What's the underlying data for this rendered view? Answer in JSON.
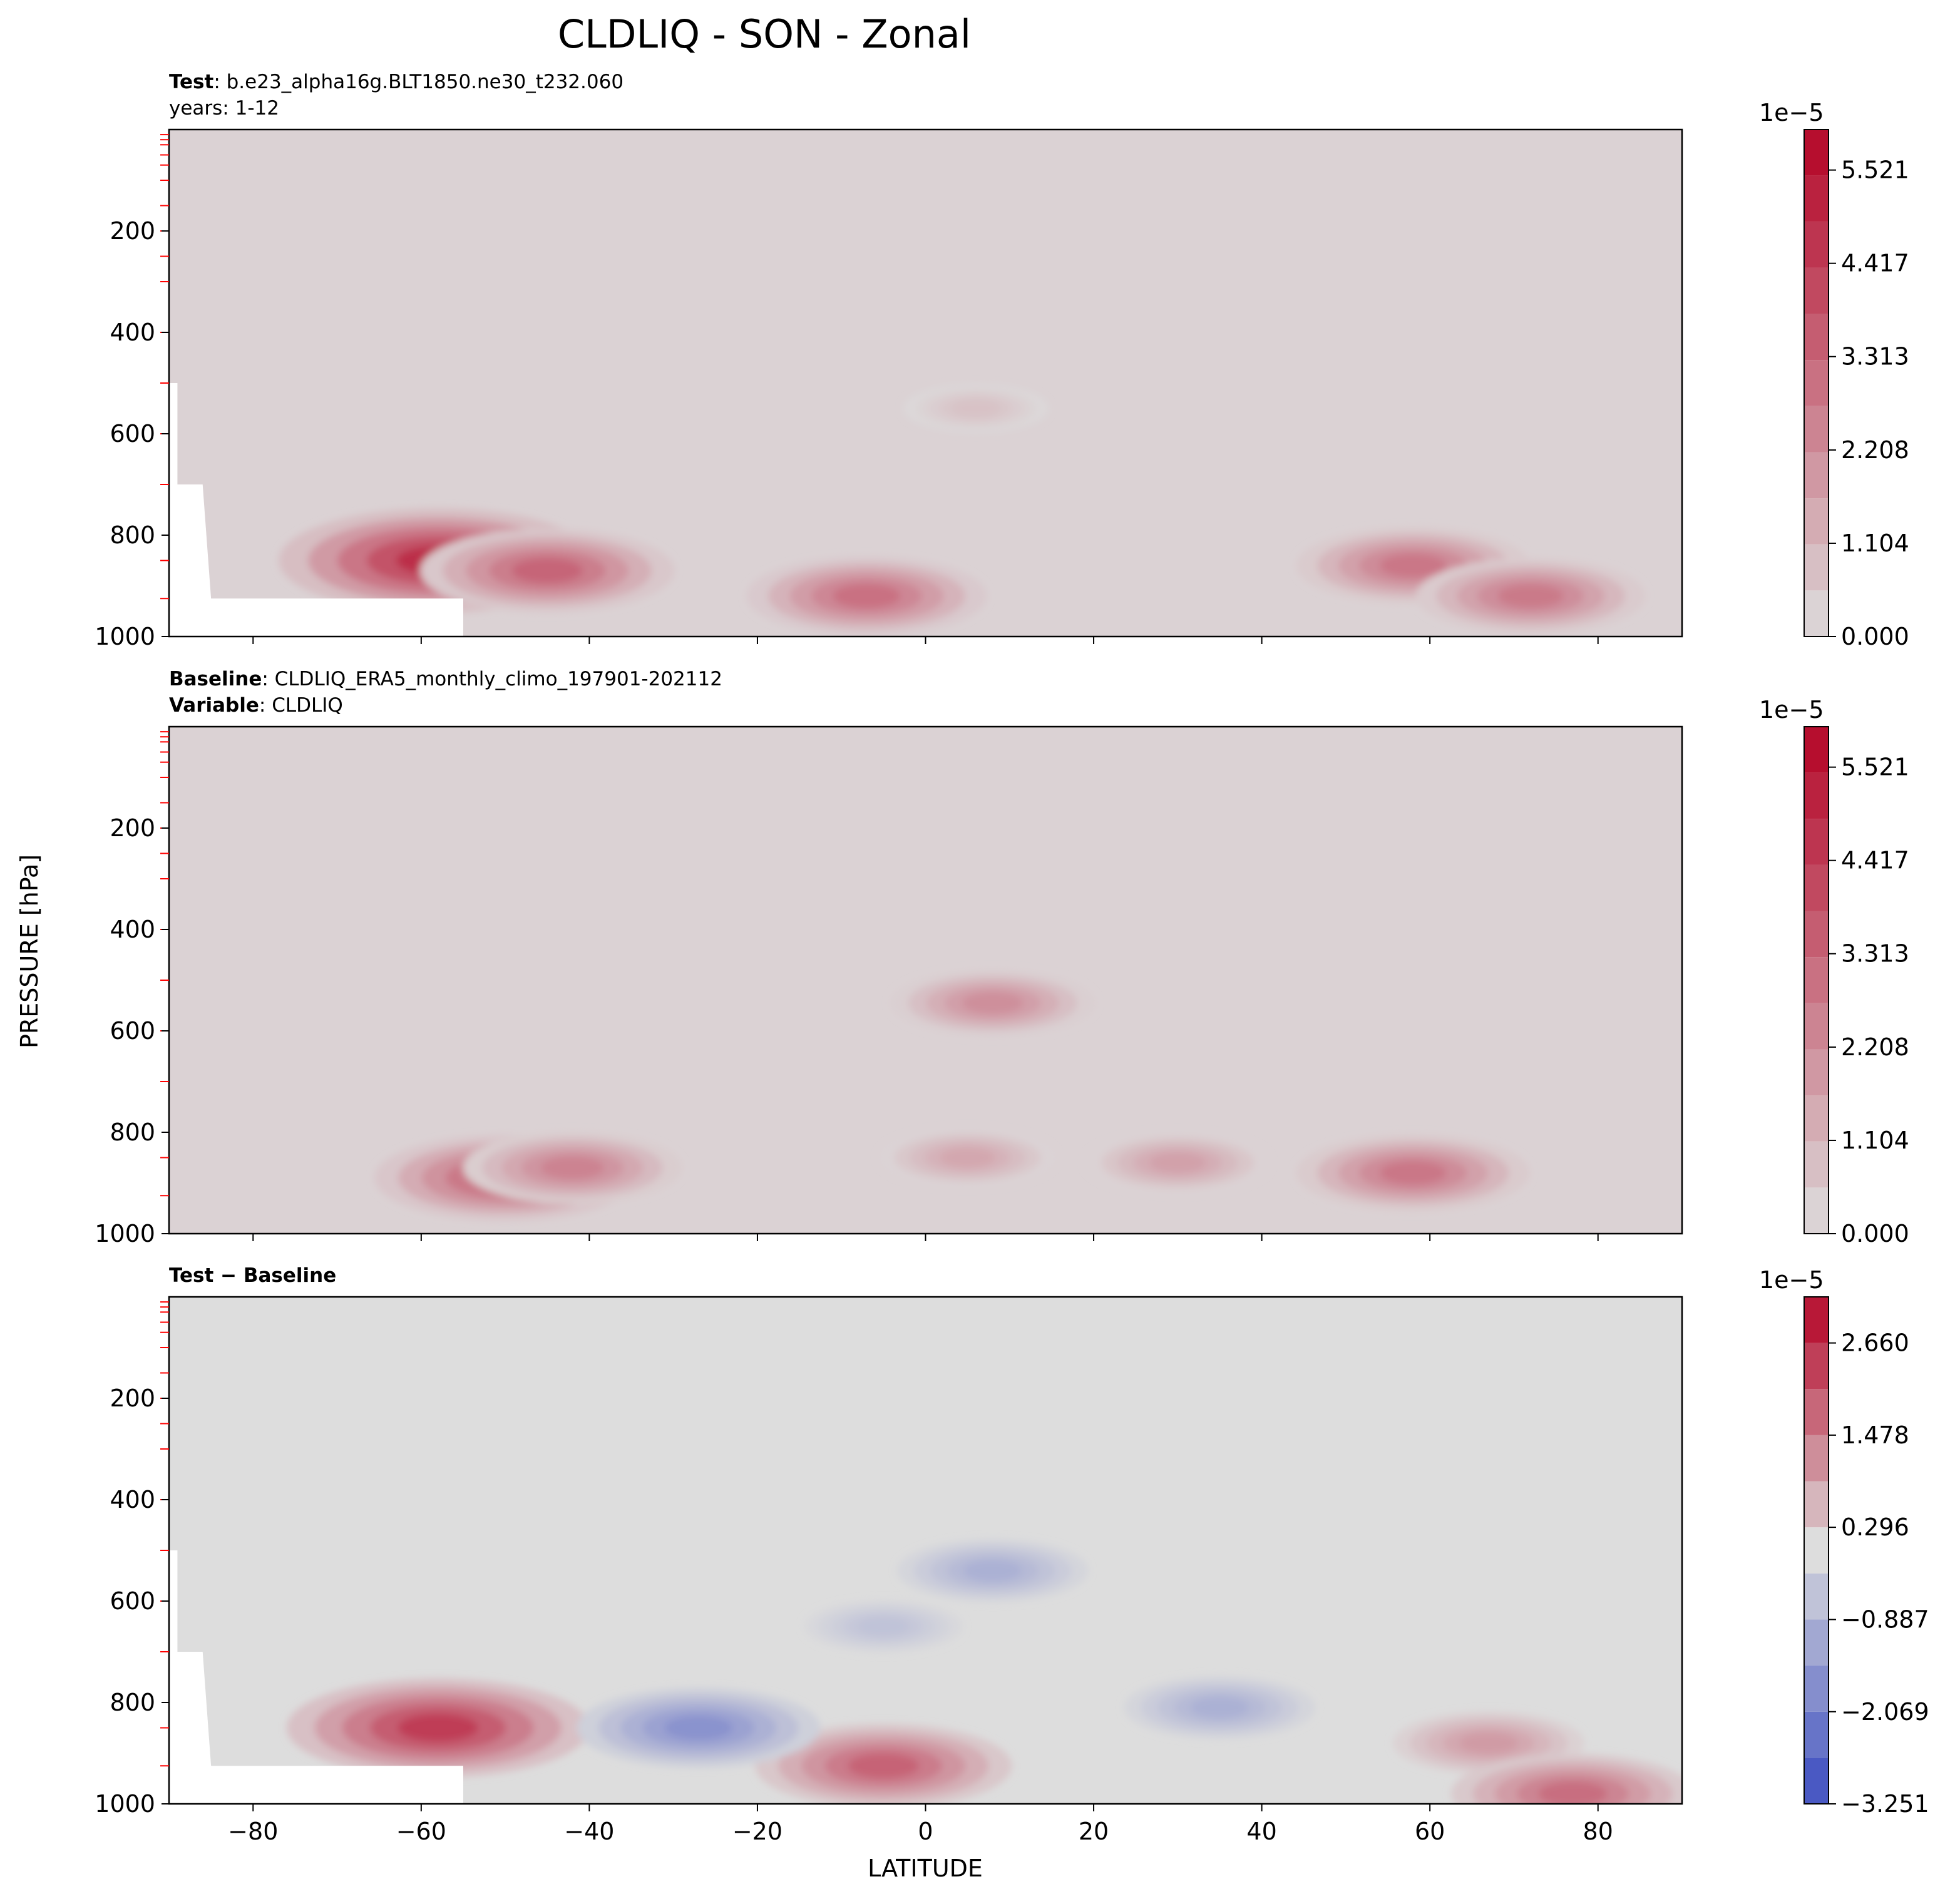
{
  "title": "CLDLIQ - SON - Zonal",
  "xlabel": "LATITUDE",
  "ylabel": "PRESSURE [hPa]",
  "colors": {
    "cmap_low": "#3b4cc0",
    "cmap_mid": "#dddddd",
    "cmap_high": "#b40426",
    "mask": "#ffffff",
    "level_tick": "#ff0000"
  },
  "panels": [
    {
      "id": "test",
      "title_lines": [
        {
          "bold": "Test",
          "text": ": b.e23_alpha16g.BLT1850.ne30_t232.060"
        },
        {
          "bold": "",
          "text": "years: 1-12"
        }
      ],
      "colorbar": {
        "exponent": "1e−5",
        "ticks": [
          "0.000",
          "1.104",
          "2.208",
          "3.313",
          "4.417",
          "5.521"
        ]
      }
    },
    {
      "id": "baseline",
      "title_lines": [
        {
          "bold": "Baseline",
          "text": ": CLDLIQ_ERA5_monthly_climo_197901-202112"
        },
        {
          "bold": "Variable",
          "text": ": CLDLIQ"
        }
      ],
      "colorbar": {
        "exponent": "1e−5",
        "ticks": [
          "0.000",
          "1.104",
          "2.208",
          "3.313",
          "4.417",
          "5.521"
        ]
      }
    },
    {
      "id": "difference",
      "title_lines": [
        {
          "bold": "Test − Baseline",
          "text": ""
        }
      ],
      "colorbar": {
        "exponent": "1e−5",
        "ticks": [
          "−3.251",
          "−2.069",
          "−0.887",
          "0.296",
          "1.478",
          "2.660"
        ]
      }
    }
  ],
  "chart_data": [
    {
      "type": "heatmap",
      "subtype": "filled-contour",
      "panel": "test",
      "x_ticks": [
        -80,
        -60,
        -40,
        -20,
        0,
        20,
        40,
        60,
        80
      ],
      "y_ticks": [
        200,
        400,
        600,
        800,
        1000
      ],
      "xlim": [
        -90,
        90
      ],
      "ylim": [
        1000,
        0
      ],
      "levels_colorbar": {
        "min": 0.0,
        "max": 6.0,
        "units_multiplier": "1e-5",
        "ticks": [
          0.0,
          1.104,
          2.208,
          3.313,
          4.417,
          5.521
        ]
      },
      "features": [
        {
          "name": "southern-ocean-max",
          "lat": -58,
          "pressure": 850,
          "value": 5.8
        },
        {
          "name": "southern-secondary",
          "lat": -45,
          "pressure": 870,
          "value": 4.0
        },
        {
          "name": "tropical-low-level",
          "lat": -7,
          "pressure": 920,
          "value": 3.6
        },
        {
          "name": "equatorial-column",
          "lat": 6,
          "pressure": 550,
          "value": 0.9
        },
        {
          "name": "northern-mid-lat",
          "lat": 58,
          "pressure": 860,
          "value": 3.4
        },
        {
          "name": "northern-high-lat",
          "lat": 72,
          "pressure": 920,
          "value": 3.3
        }
      ],
      "masked_region": "below-surface over Antarctica (-90 to -55 lat)"
    },
    {
      "type": "heatmap",
      "subtype": "filled-contour",
      "panel": "baseline",
      "x_ticks": [
        -80,
        -60,
        -40,
        -20,
        0,
        20,
        40,
        60,
        80
      ],
      "y_ticks": [
        200,
        400,
        600,
        800,
        1000
      ],
      "xlim": [
        -90,
        90
      ],
      "ylim": [
        1000,
        0
      ],
      "levels_colorbar": {
        "min": 0.0,
        "max": 6.0,
        "units_multiplier": "1e-5",
        "ticks": [
          0.0,
          1.104,
          2.208,
          3.313,
          4.417,
          5.521
        ]
      },
      "features": [
        {
          "name": "southern-ocean-max",
          "lat": -50,
          "pressure": 890,
          "value": 4.2
        },
        {
          "name": "southern-broad",
          "lat": -42,
          "pressure": 870,
          "value": 3.0
        },
        {
          "name": "equatorial-mid-level",
          "lat": 8,
          "pressure": 545,
          "value": 2.6
        },
        {
          "name": "equatorial-low",
          "lat": 5,
          "pressure": 850,
          "value": 1.8
        },
        {
          "name": "northern-low-level",
          "lat": 30,
          "pressure": 860,
          "value": 2.0
        },
        {
          "name": "northern-mid-lat",
          "lat": 58,
          "pressure": 880,
          "value": 3.4
        }
      ]
    },
    {
      "type": "heatmap",
      "subtype": "filled-contour",
      "panel": "difference",
      "x_ticks": [
        -80,
        -60,
        -40,
        -20,
        0,
        20,
        40,
        60,
        80
      ],
      "y_ticks": [
        200,
        400,
        600,
        800,
        1000
      ],
      "xlim": [
        -90,
        90
      ],
      "ylim": [
        1000,
        0
      ],
      "levels_colorbar": {
        "min": -3.251,
        "max": 3.251,
        "units_multiplier": "1e-5",
        "ticks": [
          -3.251,
          -2.069,
          -0.887,
          0.296,
          1.478,
          2.66
        ]
      },
      "features": [
        {
          "name": "southern-positive",
          "lat": -58,
          "pressure": 850,
          "value": 2.9
        },
        {
          "name": "tropical-positive",
          "lat": -5,
          "pressure": 925,
          "value": 2.2
        },
        {
          "name": "broad-negative",
          "lat": -5,
          "pressure": 650,
          "value": -0.7
        },
        {
          "name": "south-subtropic-negative",
          "lat": -27,
          "pressure": 850,
          "value": -2.0
        },
        {
          "name": "equatorial-negative",
          "lat": 8,
          "pressure": 540,
          "value": -1.2
        },
        {
          "name": "north-subtropic-negative",
          "lat": 35,
          "pressure": 810,
          "value": -1.2
        },
        {
          "name": "northern-positive",
          "lat": 67,
          "pressure": 880,
          "value": 1.2
        },
        {
          "name": "arctic-positive",
          "lat": 77,
          "pressure": 980,
          "value": 2.0
        }
      ],
      "masked_region": "below-surface over Antarctica (-90 to -55 lat)"
    }
  ]
}
